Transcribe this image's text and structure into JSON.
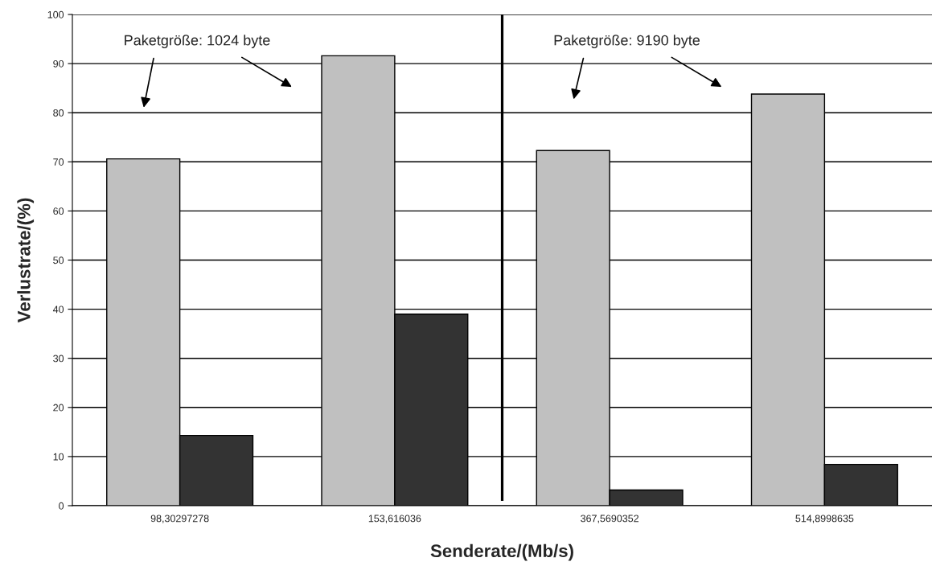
{
  "chart_data": {
    "type": "bar",
    "xlabel": "Senderate/(Mb/s)",
    "ylabel": "Verlustrate/(%)",
    "categories": [
      "98,30297278",
      "153,616036",
      "367,5690352",
      "514,8998635"
    ],
    "series": [
      {
        "color": "#c0c0c0",
        "values": [
          70.6,
          91.6,
          72.3,
          83.8
        ]
      },
      {
        "color": "#333333",
        "values": [
          14.3,
          39.0,
          3.2,
          8.4
        ]
      }
    ],
    "ylim": [
      0,
      100
    ],
    "yticks": [
      0,
      10,
      20,
      30,
      40,
      50,
      60,
      70,
      80,
      90,
      100
    ],
    "grid": "y",
    "legend": false,
    "annotations": [
      "Paketgröße: 1024 byte",
      "Paketgröße: 9190 byte"
    ]
  }
}
